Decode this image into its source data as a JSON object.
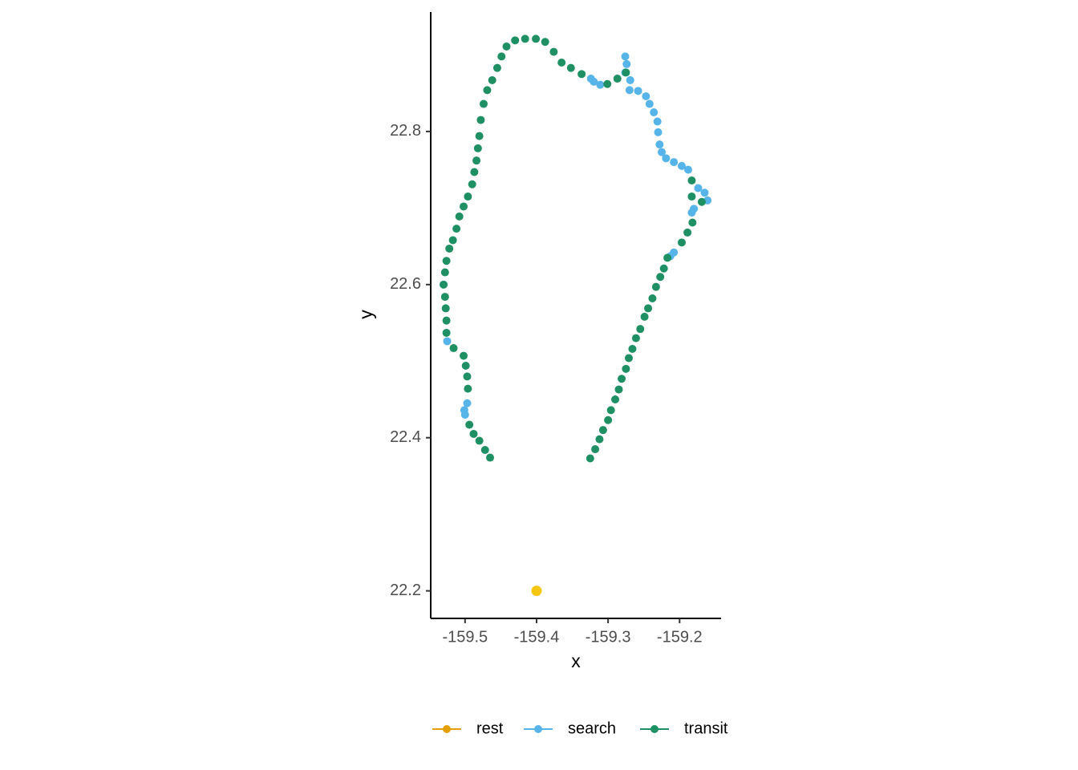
{
  "chart_data": {
    "type": "scatter",
    "x_label": "x",
    "y_label": "y",
    "xlim": [
      -159.548,
      -159.142
    ],
    "ylim": [
      22.164,
      22.956
    ],
    "xticks": [
      -159.5,
      -159.4,
      -159.3,
      -159.2
    ],
    "yticks": [
      22.2,
      22.4,
      22.6,
      22.8
    ],
    "series": [
      {
        "name": "rest",
        "color": "#E69F00",
        "x": [],
        "y": []
      },
      {
        "name": "search",
        "color": "#56B4E9",
        "x": [
          -159.5,
          -159.497,
          -159.501,
          -159.525,
          -159.324,
          -159.311,
          -159.32,
          -159.276,
          -159.274,
          -159.276,
          -159.269,
          -159.27,
          -159.258,
          -159.247,
          -159.242,
          -159.236,
          -159.231,
          -159.23,
          -159.228,
          -159.225,
          -159.219,
          -159.208,
          -159.197,
          -159.188,
          -159.174,
          -159.165,
          -159.161,
          -159.18,
          -159.183,
          -159.208,
          -159.213
        ],
        "y": [
          22.43,
          22.445,
          22.436,
          22.526,
          22.869,
          22.861,
          22.865,
          22.898,
          22.888,
          22.877,
          22.867,
          22.854,
          22.853,
          22.846,
          22.836,
          22.825,
          22.813,
          22.799,
          22.783,
          22.773,
          22.765,
          22.76,
          22.755,
          22.75,
          22.726,
          22.72,
          22.71,
          22.699,
          22.694,
          22.642,
          22.637
        ]
      },
      {
        "name": "transit",
        "color": "#1F8F64",
        "x": [
          -159.465,
          -159.472,
          -159.48,
          -159.488,
          -159.494,
          -159.496,
          -159.497,
          -159.499,
          -159.502,
          -159.516,
          -159.526,
          -159.526,
          -159.527,
          -159.528,
          -159.53,
          -159.528,
          -159.526,
          -159.522,
          -159.517,
          -159.512,
          -159.508,
          -159.502,
          -159.496,
          -159.49,
          -159.487,
          -159.484,
          -159.482,
          -159.48,
          -159.478,
          -159.474,
          -159.469,
          -159.462,
          -159.455,
          -159.449,
          -159.442,
          -159.43,
          -159.416,
          -159.401,
          -159.388,
          -159.376,
          -159.365,
          -159.352,
          -159.337,
          -159.301,
          -159.287,
          -159.275,
          -159.183,
          -159.183,
          -159.169,
          -159.182,
          -159.189,
          -159.197,
          -159.217,
          -159.222,
          -159.227,
          -159.233,
          -159.238,
          -159.244,
          -159.249,
          -159.255,
          -159.261,
          -159.266,
          -159.271,
          -159.275,
          -159.281,
          -159.285,
          -159.29,
          -159.296,
          -159.3,
          -159.307,
          -159.312,
          -159.318,
          -159.325
        ],
        "y": [
          22.374,
          22.384,
          22.396,
          22.405,
          22.417,
          22.464,
          22.48,
          22.494,
          22.507,
          22.517,
          22.537,
          22.553,
          22.569,
          22.584,
          22.6,
          22.616,
          22.631,
          22.647,
          22.658,
          22.673,
          22.689,
          22.702,
          22.715,
          22.731,
          22.747,
          22.762,
          22.778,
          22.794,
          22.815,
          22.836,
          22.854,
          22.867,
          22.883,
          22.898,
          22.911,
          22.919,
          22.921,
          22.921,
          22.917,
          22.904,
          22.89,
          22.883,
          22.875,
          22.862,
          22.869,
          22.877,
          22.736,
          22.715,
          22.708,
          22.681,
          22.668,
          22.655,
          22.635,
          22.621,
          22.61,
          22.597,
          22.582,
          22.569,
          22.558,
          22.542,
          22.53,
          22.516,
          22.504,
          22.49,
          22.477,
          22.463,
          22.45,
          22.436,
          22.423,
          22.41,
          22.398,
          22.385,
          22.373
        ]
      },
      {
        "color": "#F5C710",
        "x": [
          -159.4
        ],
        "y": [
          22.2
        ]
      }
    ]
  }
}
